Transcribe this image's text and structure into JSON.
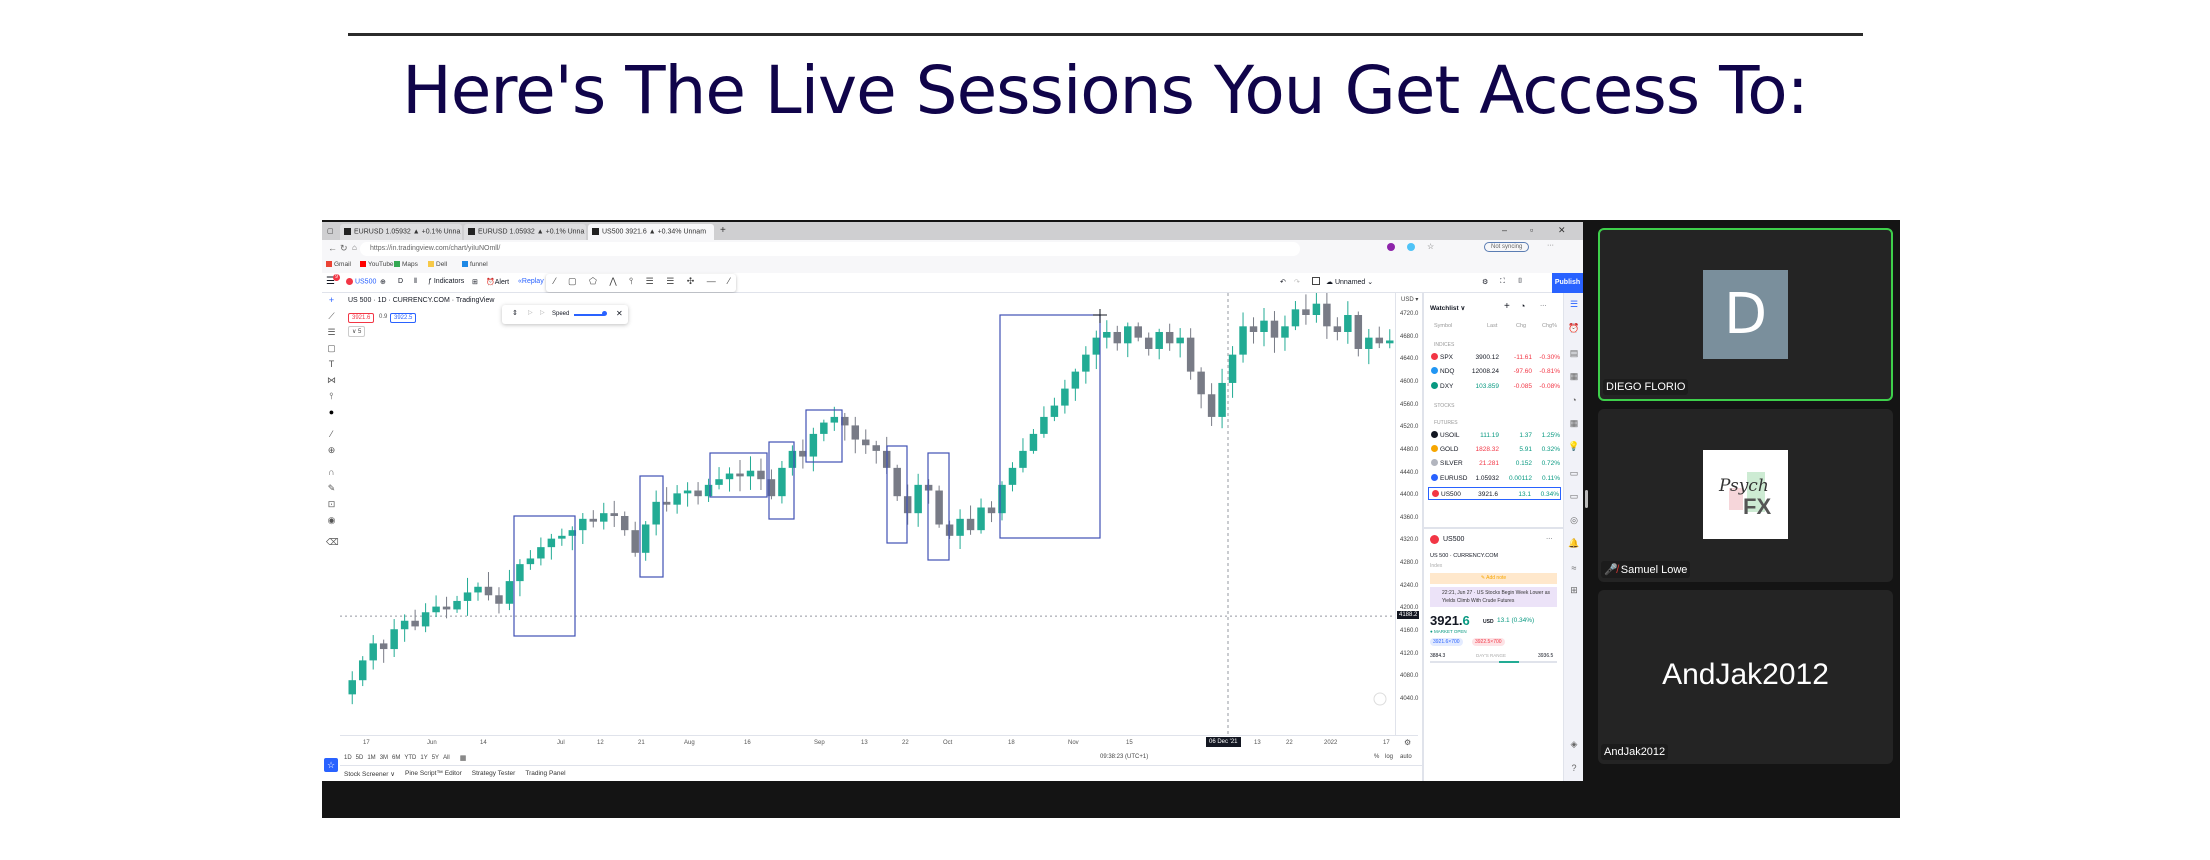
{
  "page": {
    "title": "Here's The Live Sessions You Get Access To:"
  },
  "browser": {
    "tabs": [
      "EURUSD 1.05932 ▲ +0.1% Unna",
      "EURUSD 1.05932 ▲ +0.1% Unna",
      "US500 3921.6 ▲ +0.34% Unnam"
    ],
    "url": "https://in.tradingview.com/chart/yiIuNOmll/",
    "bookmarks": [
      "Gmail",
      "YouTube",
      "Maps",
      "Dell",
      "funnel"
    ],
    "sync_label": "Not syncing"
  },
  "toolbar": {
    "symbol": "US500",
    "interval": "D",
    "indicators": "Indicators",
    "alert": "Alert",
    "replay": "Replay",
    "layout_name": "Unnamed",
    "publish": "Publish",
    "badge": "9"
  },
  "chart": {
    "header": "US 500 · 1D · CURRENCY.COM · TradingView",
    "bid": "3921.6",
    "spread": "0.9",
    "ask": "3922.5",
    "collapse": "∨ 5",
    "replay_speed_label": "Speed",
    "currency": "USD ▾",
    "price_ticks": [
      "4720.0",
      "4680.0",
      "4640.0",
      "4600.0",
      "4560.0",
      "4520.0",
      "4480.0",
      "4440.0",
      "4400.0",
      "4360.0",
      "4320.0",
      "4280.0",
      "4240.0",
      "4200.0",
      "4160.0",
      "4120.0",
      "4080.0",
      "4040.0"
    ],
    "current_price_tag": "4188.2",
    "time_ticks": [
      "17",
      "Jun",
      "14",
      "Jul",
      "12",
      "21",
      "Aug",
      "16",
      "Sep",
      "13",
      "22",
      "Oct",
      "18",
      "Nov",
      "15",
      "13",
      "22",
      "2022",
      "17"
    ],
    "crosshair_date": "06 Dec '21",
    "ranges": [
      "1D",
      "5D",
      "1M",
      "3M",
      "6M",
      "YTD",
      "1Y",
      "5Y",
      "All"
    ],
    "clock": "09:38:23 (UTC+1)",
    "scale_options": [
      "%",
      "log",
      "auto"
    ],
    "colors": {
      "up": "#22ab94",
      "down": "#787b86",
      "drawing": "#3f51b5"
    },
    "closes": [
      4075,
      4110,
      4140,
      4130,
      4165,
      4180,
      4170,
      4195,
      4205,
      4200,
      4215,
      4230,
      4240,
      4225,
      4210,
      4250,
      4280,
      4290,
      4310,
      4325,
      4330,
      4340,
      4360,
      4355,
      4370,
      4365,
      4340,
      4300,
      4350,
      4390,
      4385,
      4405,
      4410,
      4400,
      4420,
      4430,
      4440,
      4435,
      4445,
      4430,
      4400,
      4450,
      4480,
      4470,
      4510,
      4530,
      4540,
      4525,
      4500,
      4490,
      4480,
      4450,
      4400,
      4370,
      4420,
      4410,
      4350,
      4330,
      4360,
      4340,
      4380,
      4370,
      4420,
      4450,
      4480,
      4510,
      4540,
      4560,
      4590,
      4620,
      4650,
      4680,
      4690,
      4670,
      4700,
      4680,
      4660,
      4690,
      4670,
      4680,
      4620,
      4580,
      4540,
      4600,
      4650,
      4700,
      4690,
      4710,
      4680,
      4700,
      4730,
      4720,
      4740,
      4700,
      4690,
      4720,
      4660,
      4680,
      4670,
      4675
    ]
  },
  "bottom_tabs": [
    "Stock Screener ∨",
    "Pine Script™ Editor",
    "Strategy Tester",
    "Trading Panel"
  ],
  "watchlist": {
    "title": "Watchlist ∨",
    "columns": [
      "Symbol",
      "Last",
      "Chg",
      "Chg%"
    ],
    "sections": [
      "INDICES",
      "STOCKS",
      "FUTURES"
    ],
    "rows": [
      {
        "symbol": "SPX",
        "last": "3900.12",
        "chg": "-11.61",
        "pct": "-0.30%",
        "dir": "down",
        "icon": "#f23645",
        "section": 0
      },
      {
        "symbol": "NDQ",
        "last": "12008.24",
        "chg": "-97.60",
        "pct": "-0.81%",
        "dir": "down",
        "icon": "#2196f3",
        "section": 0
      },
      {
        "symbol": "DXY",
        "last": "103.859",
        "chg": "-0.085",
        "pct": "-0.08%",
        "dir": "down",
        "icon": "#089981",
        "section": 0
      },
      {
        "symbol": "USOIL",
        "last": "111.19",
        "chg": "1.37",
        "pct": "1.25%",
        "dir": "up",
        "icon": "#131722",
        "section": 2
      },
      {
        "symbol": "GOLD",
        "last": "1828.32",
        "chg": "5.91",
        "pct": "0.32%",
        "dir": "up",
        "icon": "#f7a600",
        "section": 2
      },
      {
        "symbol": "SILVER",
        "last": "21.281",
        "chg": "0.152",
        "pct": "0.72%",
        "dir": "up",
        "icon": "#b2b5be",
        "section": 2
      },
      {
        "symbol": "EURUSD",
        "last": "1.05932",
        "chg": "0.00112",
        "pct": "0.11%",
        "dir": "up",
        "icon": "#2962ff",
        "section": 2
      },
      {
        "symbol": "US500",
        "last": "3921.6",
        "chg": "13.1",
        "pct": "0.34%",
        "dir": "up",
        "icon": "#f23645",
        "section": 2
      }
    ]
  },
  "details": {
    "symbol": "US500",
    "description": "US 500 · CURRENCY.COM",
    "type": "Index",
    "add_note": "Add note",
    "news": "22:21, Jun 27 · US Stocks Begin Week Lower as Yields Climb With Crude Futures",
    "price_int": "3921.",
    "price_dec": "6",
    "currency": "USD",
    "change": "13.1 (0.34%)",
    "status": "MARKET OPEN",
    "bid": "3921.6×700",
    "ask": "3922.5×700",
    "range_low": "3884.3",
    "range_label": "DAY'S RANGE",
    "range_high": "3936.5",
    "range_position": 0.7
  },
  "meeting": {
    "participants": [
      {
        "name": "DIEGO FLORIO",
        "avatar_letter": "D",
        "speaking": true
      },
      {
        "name": "Samuel Lowe",
        "logo_text": "Psych FX",
        "muted": true
      },
      {
        "name": "AndJak2012",
        "display": "AndJak2012"
      }
    ]
  }
}
